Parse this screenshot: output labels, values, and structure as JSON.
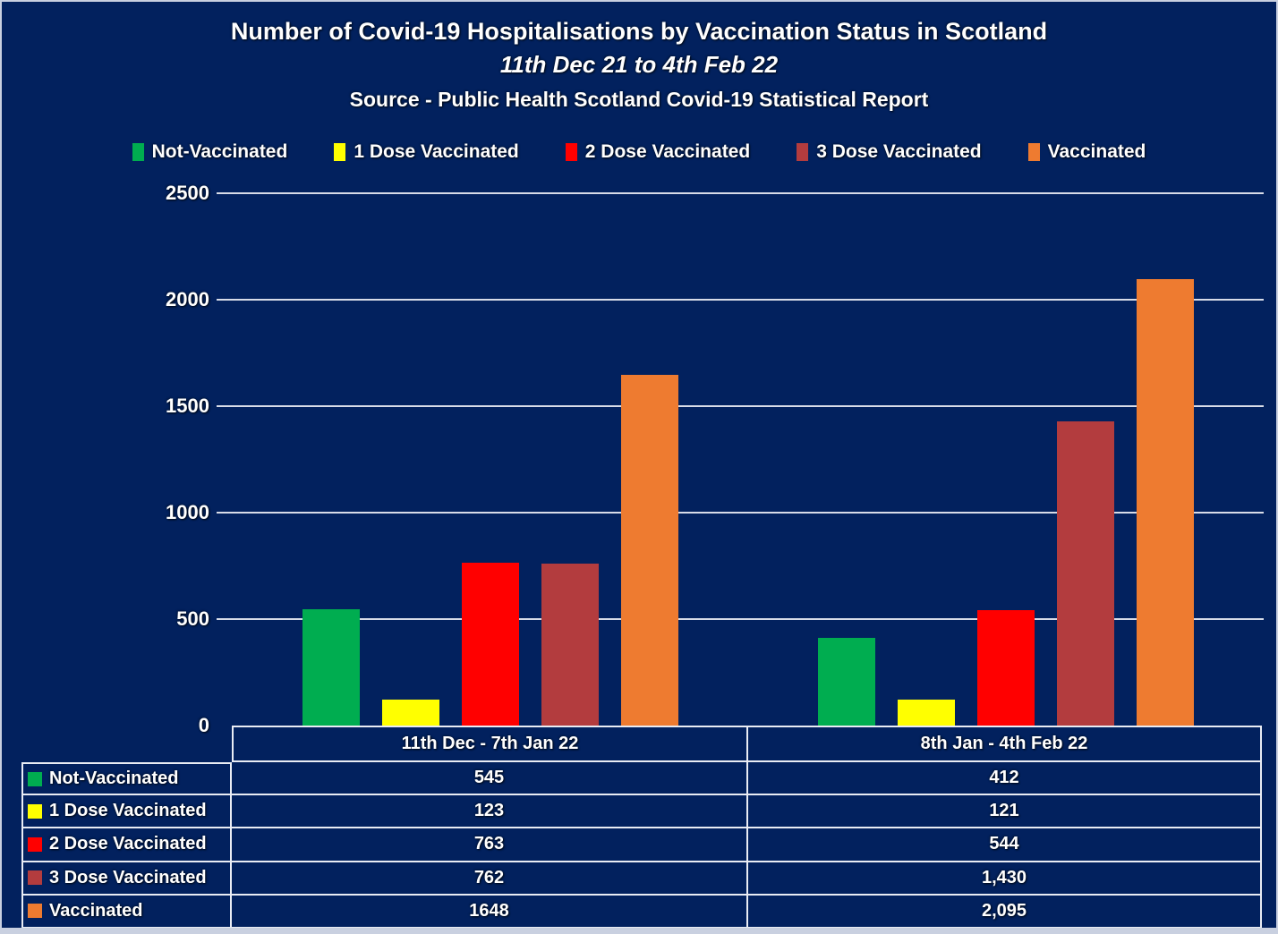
{
  "page": {
    "background": "#02215E",
    "border_color": "#C9D0E0"
  },
  "header": {
    "title": "Number of Covid-19 Hospitalisations by Vaccination Status in Scotland",
    "subtitle": "11th Dec 21 to 4th Feb 22",
    "source": "Source - Public Health Scotland Covid-19 Statistical Report"
  },
  "chart_data": {
    "type": "bar",
    "title": "Number of Covid-19 Hospitalisations by Vaccination Status in Scotland",
    "subtitle": "11th Dec 21 to 4th Feb 22",
    "source_note": "Source - Public Health Scotland Covid-19 Statistical Report",
    "categories": [
      "11th Dec - 7th Jan 22",
      "8th Jan - 4th Feb 22"
    ],
    "series": [
      {
        "name": "Not-Vaccinated",
        "color": "#00AD50",
        "values": [
          545,
          412
        ],
        "display_values": [
          "545",
          "412"
        ]
      },
      {
        "name": "1 Dose Vaccinated",
        "color": "#FFFF00",
        "values": [
          123,
          121
        ],
        "display_values": [
          "123",
          "121"
        ]
      },
      {
        "name": "2 Dose Vaccinated",
        "color": "#FF0000",
        "values": [
          763,
          544
        ],
        "display_values": [
          "763",
          "544"
        ]
      },
      {
        "name": "3 Dose Vaccinated",
        "color": "#B33C3E",
        "values": [
          762,
          1430
        ],
        "display_values": [
          "762",
          "1,430"
        ]
      },
      {
        "name": "Vaccinated",
        "color": "#EE7B30",
        "values": [
          1648,
          2095
        ],
        "display_values": [
          "1648",
          "2,095"
        ]
      }
    ],
    "ylim": [
      0,
      2500
    ],
    "yticks": [
      "0",
      "500",
      "1000",
      "1500",
      "2000",
      "2500"
    ],
    "grid": true,
    "gridline_color": "#D8DCE8",
    "legend_position": "top"
  },
  "table": {
    "column_headers": [
      "11th Dec - 7th Jan 22",
      "8th Jan - 4th Feb 22"
    ],
    "rows": [
      {
        "label": "Not-Vaccinated",
        "values": [
          "545",
          "412"
        ]
      },
      {
        "label": "1 Dose Vaccinated",
        "values": [
          "123",
          "121"
        ]
      },
      {
        "label": "2 Dose Vaccinated",
        "values": [
          "763",
          "544"
        ]
      },
      {
        "label": "3 Dose Vaccinated",
        "values": [
          "762",
          "1,430"
        ]
      },
      {
        "label": "Vaccinated",
        "values": [
          "1648",
          "2,095"
        ]
      }
    ]
  }
}
